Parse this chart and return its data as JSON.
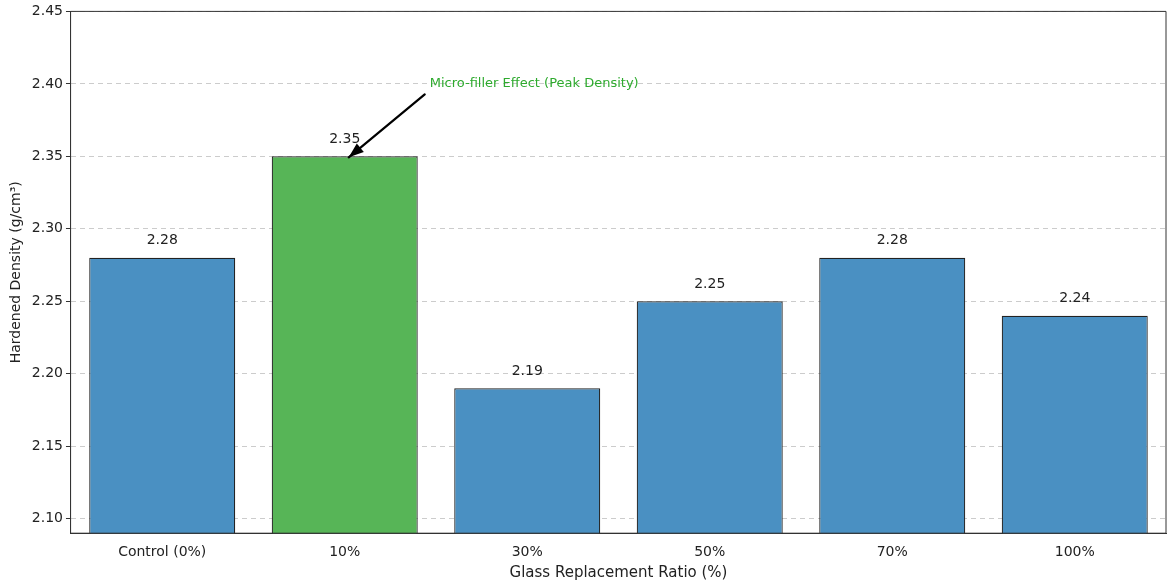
{
  "chart_data": {
    "type": "bar",
    "categories": [
      "Control (0%)",
      "10%",
      "30%",
      "50%",
      "70%",
      "100%"
    ],
    "values": [
      2.28,
      2.35,
      2.19,
      2.25,
      2.28,
      2.24
    ],
    "colors": [
      "#4a90c2",
      "#57b557",
      "#4a90c2",
      "#4a90c2",
      "#4a90c2",
      "#4a90c2"
    ],
    "xlabel": "Glass Replacement Ratio (%)",
    "ylabel": "Hardened Density (g/cm³)",
    "ylim": [
      2.09,
      2.45
    ],
    "yticks": [
      {
        "value": 2.1,
        "label": "2.10"
      },
      {
        "value": 2.15,
        "label": "2.15"
      },
      {
        "value": 2.2,
        "label": "2.20"
      },
      {
        "value": 2.25,
        "label": "2.25"
      },
      {
        "value": 2.3,
        "label": "2.30"
      },
      {
        "value": 2.35,
        "label": "2.35"
      },
      {
        "value": 2.4,
        "label": "2.40"
      },
      {
        "value": 2.45,
        "label": "2.45"
      }
    ],
    "grid": "y",
    "data_labels": true,
    "annotations": [
      {
        "text": "Micro-filler Effect (Peak Density)",
        "x": "10%",
        "y": 2.35
      }
    ]
  }
}
